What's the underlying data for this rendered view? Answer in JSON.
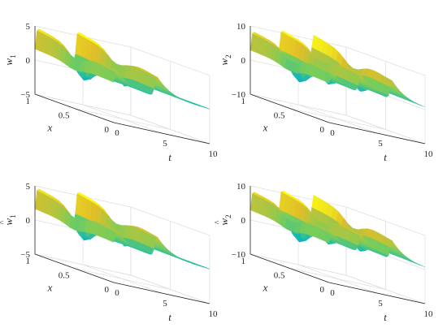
{
  "chart_data": [
    {
      "type": "surface",
      "zlabel_base": "w",
      "zlabel_hat": "",
      "zlabel_sub": "1",
      "xlabel": "x",
      "tlabel": "t",
      "x_range": [
        0,
        1
      ],
      "t_range": [
        0,
        10
      ],
      "z_range": [
        -5,
        5
      ],
      "x_ticks": [
        "0",
        "0.5",
        "1"
      ],
      "t_ticks": [
        "0",
        "5",
        "10"
      ],
      "z_ticks": [
        "-5",
        "0",
        "5"
      ],
      "peaks": [
        {
          "t": 0.3,
          "z": 5
        },
        {
          "t": 4.5,
          "z": 5.5
        }
      ],
      "trough_min": -4.5,
      "grid": true
    },
    {
      "type": "surface",
      "zlabel_base": "w",
      "zlabel_hat": "",
      "zlabel_sub": "2",
      "xlabel": "x",
      "tlabel": "t",
      "x_range": [
        0,
        1
      ],
      "t_range": [
        0,
        10
      ],
      "z_range": [
        -10,
        10
      ],
      "x_ticks": [
        "0",
        "0.5",
        "1"
      ],
      "t_ticks": [
        "0",
        "5",
        "10"
      ],
      "z_ticks": [
        "-10",
        "0",
        "10"
      ],
      "peaks": [
        {
          "t": 0.3,
          "z": 9
        },
        {
          "t": 3.3,
          "z": 10
        },
        {
          "t": 6.6,
          "z": 10
        }
      ],
      "trough_min": -9,
      "grid": true
    },
    {
      "type": "surface",
      "zlabel_base": "w",
      "zlabel_hat": "^",
      "zlabel_sub": "1",
      "xlabel": "x",
      "tlabel": "t",
      "x_range": [
        0,
        1
      ],
      "t_range": [
        0,
        10
      ],
      "z_range": [
        -5,
        5
      ],
      "x_ticks": [
        "0",
        "0.5",
        "1"
      ],
      "t_ticks": [
        "0",
        "5",
        "10"
      ],
      "z_ticks": [
        "-5",
        "0",
        "5"
      ],
      "peaks": [
        {
          "t": 0.3,
          "z": 5
        },
        {
          "t": 4.5,
          "z": 5.5
        }
      ],
      "trough_min": -4.5,
      "grid": true
    },
    {
      "type": "surface",
      "zlabel_base": "w",
      "zlabel_hat": "^",
      "zlabel_sub": "2",
      "xlabel": "x",
      "tlabel": "t",
      "x_range": [
        0,
        1
      ],
      "t_range": [
        0,
        10
      ],
      "z_range": [
        -10,
        10
      ],
      "x_ticks": [
        "0",
        "0.5",
        "1"
      ],
      "t_ticks": [
        "0",
        "5",
        "10"
      ],
      "z_ticks": [
        "-10",
        "0",
        "10"
      ],
      "peaks": [
        {
          "t": 0.3,
          "z": 9
        },
        {
          "t": 3.3,
          "z": 10
        },
        {
          "t": 6.6,
          "z": 10
        }
      ],
      "trough_min": -9,
      "grid": true
    }
  ]
}
